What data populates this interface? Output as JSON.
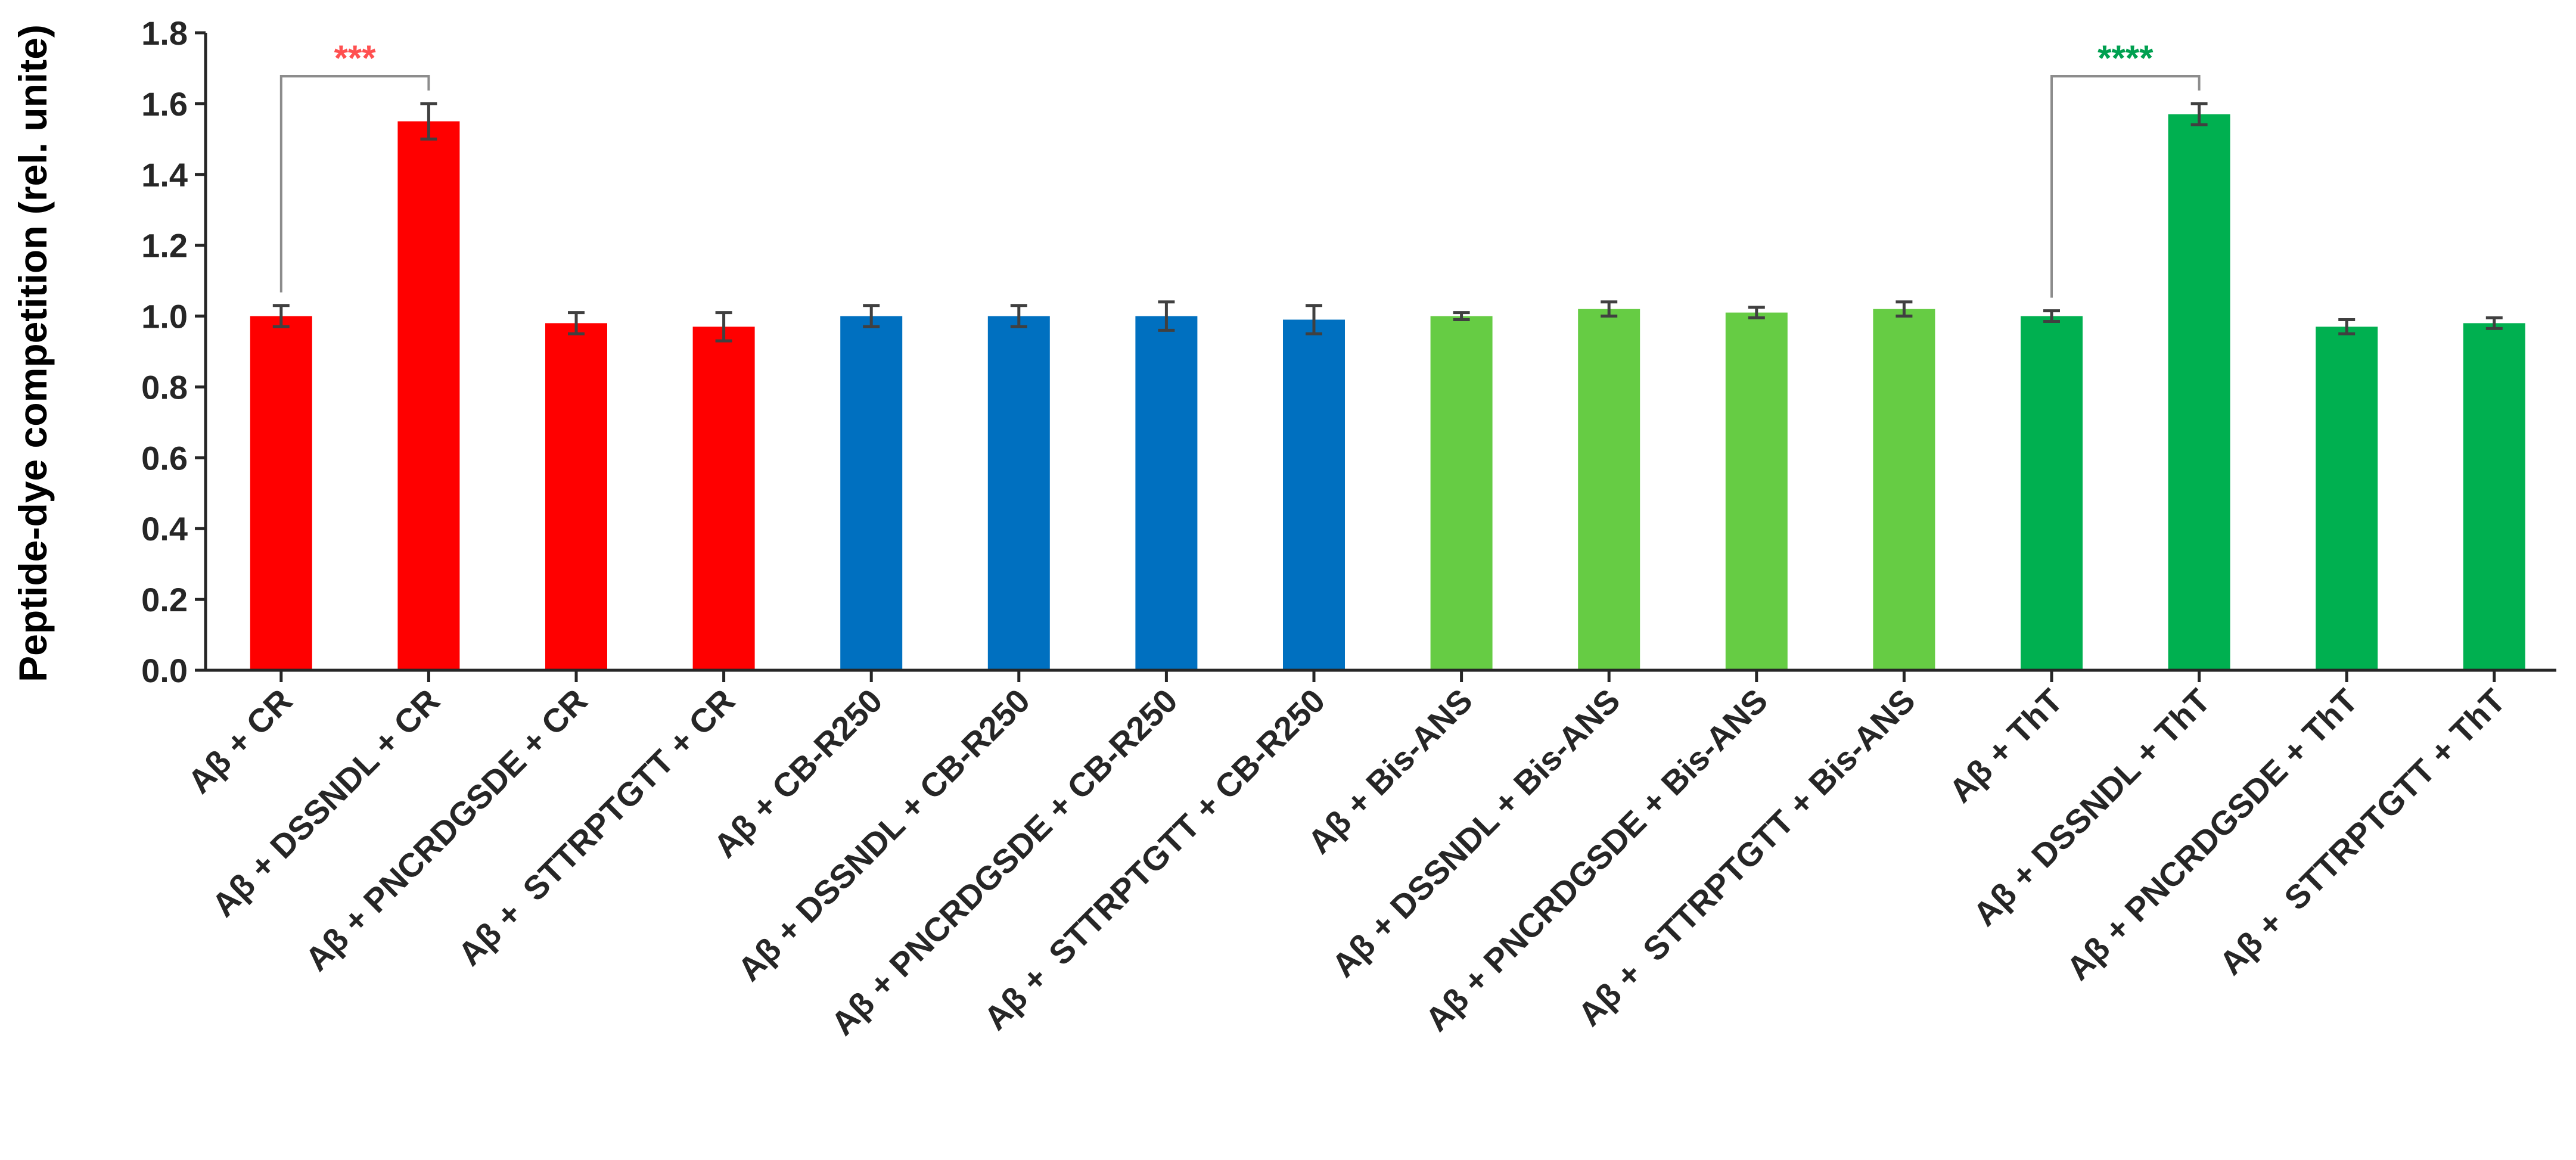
{
  "chart_data": {
    "type": "bar",
    "ylabel": "Peptide-dye competition (rel. unite)",
    "xlabel": "",
    "ylim": [
      0,
      1.8
    ],
    "yticks": [
      "0.0",
      "0.2",
      "0.4",
      "0.6",
      "0.8",
      "1.0",
      "1.2",
      "1.4",
      "1.6",
      "1.8"
    ],
    "grid": false,
    "categories": [
      "Aβ + CR",
      "Aβ + DSSNDL + CR",
      "Aβ + PNCRDGSDE + CR",
      "Aβ +  STTRPTGTT + CR",
      "Aβ + CB-R250",
      "Aβ + DSSNDL + CB-R250",
      "Aβ + PNCRDGSDE + CB-R250",
      "Aβ +  STTRPTGTT + CB-R250",
      "Aβ + Bis-ANS",
      "Aβ + DSSNDL + Bis-ANS",
      "Aβ + PNCRDGSDE + Bis-ANS",
      "Aβ +  STTRPTGTT + Bis-ANS",
      "Aβ + ThT",
      "Aβ + DSSNDL + ThT",
      "Aβ + PNCRDGSDE + ThT",
      "Aβ +  STTRPTGTT + ThT"
    ],
    "values": [
      1.0,
      1.55,
      0.98,
      0.97,
      1.0,
      1.0,
      1.0,
      0.99,
      1.0,
      1.02,
      1.01,
      1.02,
      1.0,
      1.57,
      0.97,
      0.98
    ],
    "errors": [
      0.03,
      0.05,
      0.03,
      0.04,
      0.03,
      0.03,
      0.04,
      0.04,
      0.01,
      0.02,
      0.015,
      0.02,
      0.015,
      0.03,
      0.02,
      0.015
    ],
    "bar_colors": [
      "#FF0000",
      "#FF0000",
      "#FF0000",
      "#FF0000",
      "#0070C0",
      "#0070C0",
      "#0070C0",
      "#0070C0",
      "#66CC44",
      "#66CC44",
      "#66CC44",
      "#66CC44",
      "#00B050",
      "#00B050",
      "#00B050",
      "#00B050"
    ],
    "annotations": [
      {
        "from_index": 0,
        "to_index": 1,
        "text": "***",
        "color": "#FF5050"
      },
      {
        "from_index": 12,
        "to_index": 13,
        "text": "****",
        "color": "#00A050"
      }
    ]
  }
}
